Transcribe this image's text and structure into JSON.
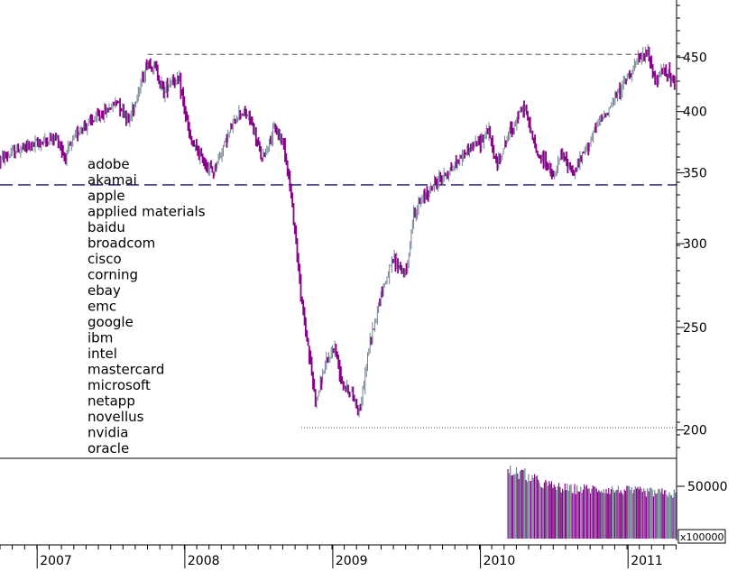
{
  "chart_data": {
    "type": "ohlc",
    "price_axis": {
      "ticks": [
        200,
        250,
        300,
        350,
        400,
        450
      ],
      "scale": "log",
      "range": [
        188,
        510
      ]
    },
    "volume_axis": {
      "ticks": [
        50000
      ],
      "unit_label": "x100000",
      "range": [
        0,
        75000
      ]
    },
    "time_axis": {
      "labels": [
        "2007",
        "2008",
        "2009",
        "2010",
        "2011"
      ],
      "start": "2006-10-01",
      "end": "2011-05-01"
    },
    "reference_lines": [
      {
        "style": "dashed",
        "value": 453,
        "from": "2007-10-01",
        "to": "2011-02-20"
      },
      {
        "style": "long-dashed",
        "value": 341,
        "from": "2006-10-01",
        "to": "2011-05-01"
      },
      {
        "style": "dotted",
        "value": 201,
        "from": "2008-10-15",
        "to": "2011-05-01"
      }
    ],
    "legend": [
      "adobe",
      "akamai",
      "apple",
      "applied materials",
      "baidu",
      "broadcom",
      "cisco",
      "corning",
      "ebay",
      "emc",
      "google",
      "ibm",
      "intel",
      "mastercard",
      "microsoft",
      "netapp",
      "novellus",
      "nvidia",
      "oracle"
    ],
    "price_path": [
      [
        "2006-10-01",
        360
      ],
      [
        "2006-11-15",
        368
      ],
      [
        "2006-12-20",
        372
      ],
      [
        "2007-01-20",
        375
      ],
      [
        "2007-02-20",
        378
      ],
      [
        "2007-03-10",
        362
      ],
      [
        "2007-04-15",
        385
      ],
      [
        "2007-05-20",
        393
      ],
      [
        "2007-06-20",
        400
      ],
      [
        "2007-07-20",
        410
      ],
      [
        "2007-08-15",
        392
      ],
      [
        "2007-09-10",
        420
      ],
      [
        "2007-10-01",
        445
      ],
      [
        "2007-10-20",
        440
      ],
      [
        "2007-11-10",
        418
      ],
      [
        "2007-11-30",
        430
      ],
      [
        "2007-12-20",
        425
      ],
      [
        "2008-01-15",
        375
      ],
      [
        "2008-02-10",
        362
      ],
      [
        "2008-03-10",
        350
      ],
      [
        "2008-04-10",
        375
      ],
      [
        "2008-05-15",
        400
      ],
      [
        "2008-06-10",
        395
      ],
      [
        "2008-07-10",
        360
      ],
      [
        "2008-08-10",
        385
      ],
      [
        "2008-09-01",
        375
      ],
      [
        "2008-09-15",
        345
      ],
      [
        "2008-10-01",
        305
      ],
      [
        "2008-10-15",
        265
      ],
      [
        "2008-11-01",
        240
      ],
      [
        "2008-11-20",
        212
      ],
      [
        "2008-12-10",
        228
      ],
      [
        "2009-01-05",
        240
      ],
      [
        "2009-01-25",
        222
      ],
      [
        "2009-02-20",
        215
      ],
      [
        "2009-03-09",
        208
      ],
      [
        "2009-04-01",
        240
      ],
      [
        "2009-05-01",
        270
      ],
      [
        "2009-06-01",
        290
      ],
      [
        "2009-07-01",
        280
      ],
      [
        "2009-07-20",
        320
      ],
      [
        "2009-08-20",
        335
      ],
      [
        "2009-09-20",
        345
      ],
      [
        "2009-10-20",
        352
      ],
      [
        "2009-11-20",
        365
      ],
      [
        "2009-12-31",
        375
      ],
      [
        "2010-01-20",
        385
      ],
      [
        "2010-02-10",
        355
      ],
      [
        "2010-03-10",
        380
      ],
      [
        "2010-04-20",
        405
      ],
      [
        "2010-05-20",
        365
      ],
      [
        "2010-06-10",
        360
      ],
      [
        "2010-07-01",
        345
      ],
      [
        "2010-07-20",
        365
      ],
      [
        "2010-08-20",
        350
      ],
      [
        "2010-09-20",
        370
      ],
      [
        "2010-10-20",
        390
      ],
      [
        "2010-11-20",
        405
      ],
      [
        "2010-12-20",
        425
      ],
      [
        "2011-01-20",
        445
      ],
      [
        "2011-02-20",
        455
      ],
      [
        "2011-03-10",
        425
      ],
      [
        "2011-04-01",
        440
      ],
      [
        "2011-04-20",
        430
      ],
      [
        "2011-05-01",
        412
      ]
    ],
    "volume_bars": {
      "start": "2010-03-10",
      "end": "2011-05-01",
      "values": [
        68000,
        65000,
        57000,
        52000,
        50000,
        50000,
        50000,
        49000,
        48000,
        47000,
        46000,
        45000
      ]
    },
    "colors": {
      "up": "#708090",
      "down": "#8b008b",
      "guide": "#555555"
    }
  }
}
